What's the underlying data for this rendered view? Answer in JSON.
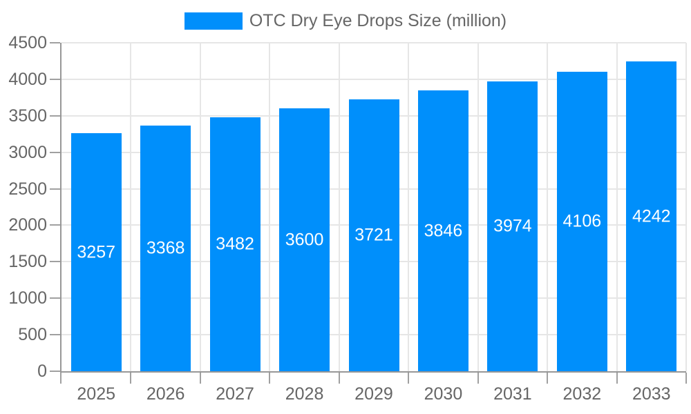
{
  "chart_data": {
    "type": "bar",
    "title": "OTC Dry Eye Drops Size (million)",
    "categories": [
      "2025",
      "2026",
      "2027",
      "2028",
      "2029",
      "2030",
      "2031",
      "2032",
      "2033"
    ],
    "values": [
      3257,
      3368,
      3482,
      3600,
      3721,
      3846,
      3974,
      4106,
      4242
    ],
    "bar_value_labels": [
      "3257",
      "3368",
      "3482",
      "3600",
      "3721",
      "3846",
      "3974",
      "4106",
      "4242"
    ],
    "xlabel": "",
    "ylabel": "",
    "ylim": [
      0,
      4500
    ],
    "yticks": [
      0,
      500,
      1000,
      1500,
      2000,
      2500,
      3000,
      3500,
      4000,
      4500
    ],
    "grid": "both",
    "legend_position": "top",
    "colors": {
      "bar": "#008FFB",
      "bar_label_text": "#ffffff",
      "axis_text": "#666666",
      "gridline": "#e6e6e6",
      "axis_line": "#979797",
      "background": "#ffffff"
    }
  }
}
